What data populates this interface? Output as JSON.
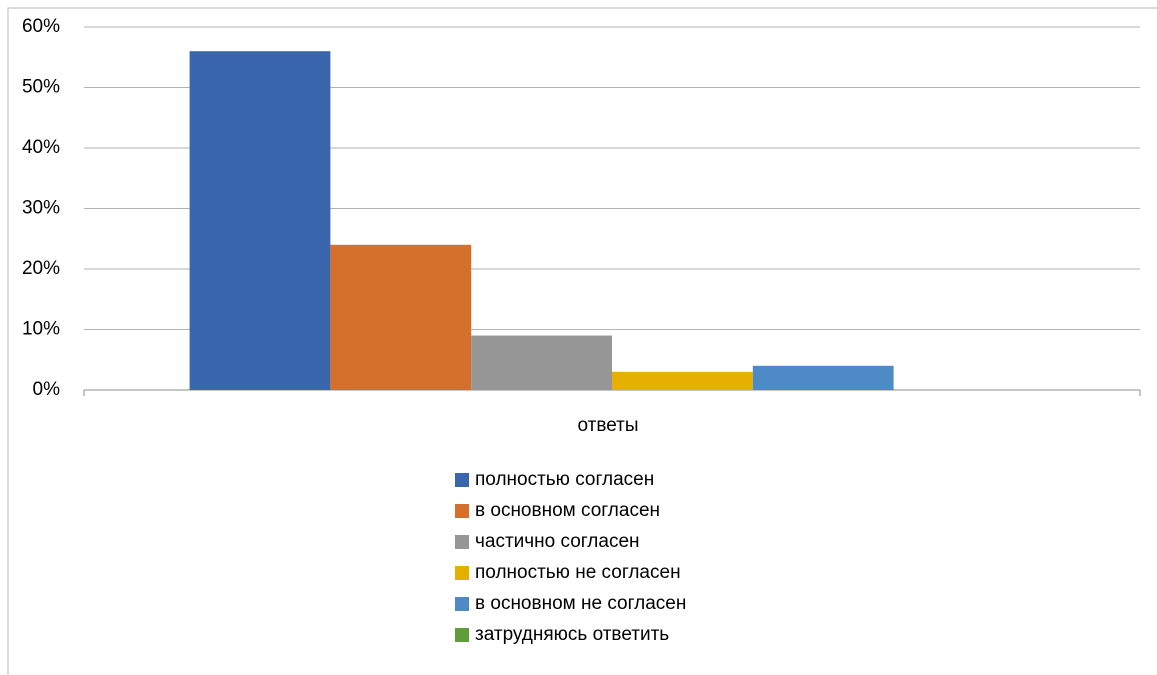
{
  "chart_data": {
    "type": "bar",
    "categories": [
      "ответы"
    ],
    "series": [
      {
        "name": "полностью согласен",
        "color": "#3a66ad",
        "values": [
          56
        ]
      },
      {
        "name": "в основном согласен",
        "color": "#d4702b",
        "values": [
          24
        ]
      },
      {
        "name": "частично согласен",
        "color": "#969696",
        "values": [
          9
        ]
      },
      {
        "name": "полностью не согласен",
        "color": "#e6b000",
        "values": [
          3
        ]
      },
      {
        "name": "в основном не согласен",
        "color": "#4d8ac6",
        "values": [
          4
        ]
      },
      {
        "name": "затрудняюсь ответить",
        "color": "#5f9c3a",
        "values": [
          0
        ]
      }
    ],
    "ylim": [
      0,
      60
    ],
    "yticks": [
      {
        "value": 0,
        "label": "0%"
      },
      {
        "value": 10,
        "label": "10%"
      },
      {
        "value": 20,
        "label": "20%"
      },
      {
        "value": 30,
        "label": "30%"
      },
      {
        "value": 40,
        "label": "40%"
      },
      {
        "value": 50,
        "label": "50%"
      },
      {
        "value": 60,
        "label": "60%"
      }
    ],
    "grid": true,
    "legend": "bottom"
  }
}
